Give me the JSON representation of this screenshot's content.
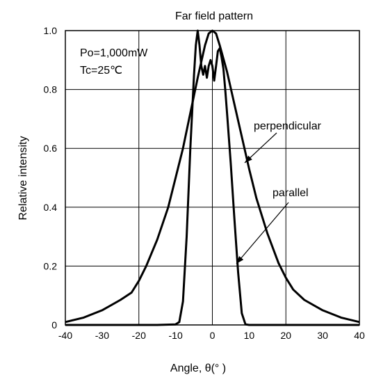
{
  "chart_data": {
    "type": "line",
    "title": "Far field pattern",
    "xlabel": "Angle,  θ(°  )",
    "ylabel": "Relative intensity",
    "xlim": [
      -40,
      40
    ],
    "ylim": [
      0,
      1.0
    ],
    "x_ticks": [
      "-40",
      "-30",
      "-20",
      "-10",
      "0",
      "10",
      "20",
      "30",
      "40"
    ],
    "y_ticks": [
      "0",
      "0.2",
      "0.4",
      "0.6",
      "0.8",
      "1.0"
    ],
    "grid": true,
    "annotations": {
      "power": "Po=1,000mW",
      "temp": "Tc=25℃",
      "perpendicular_label": "perpendicular",
      "parallel_label": "parallel"
    },
    "series": [
      {
        "name": "perpendicular",
        "x": [
          -40,
          -35,
          -30,
          -25,
          -22,
          -20,
          -18,
          -15,
          -12,
          -10,
          -8,
          -6,
          -4,
          -2,
          -1,
          0,
          1,
          2,
          4,
          6,
          8,
          10,
          12,
          15,
          18,
          20,
          22,
          25,
          30,
          35,
          40
        ],
        "y": [
          0.01,
          0.025,
          0.05,
          0.085,
          0.11,
          0.15,
          0.2,
          0.29,
          0.4,
          0.5,
          0.6,
          0.72,
          0.84,
          0.95,
          0.99,
          1.0,
          0.99,
          0.95,
          0.86,
          0.75,
          0.64,
          0.53,
          0.43,
          0.31,
          0.21,
          0.16,
          0.12,
          0.085,
          0.05,
          0.025,
          0.01
        ]
      },
      {
        "name": "parallel",
        "x": [
          -40,
          -15,
          -10,
          -9,
          -8,
          -7,
          -6,
          -5,
          -4.5,
          -4,
          -3.5,
          -3,
          -2.5,
          -2,
          -1.5,
          -1,
          -0.5,
          0,
          0.5,
          1,
          1.5,
          2,
          2.5,
          3,
          3.5,
          4,
          5,
          6,
          7,
          8,
          9,
          10,
          20,
          40
        ],
        "y": [
          0,
          0,
          0.002,
          0.01,
          0.08,
          0.3,
          0.6,
          0.85,
          0.95,
          1.0,
          0.95,
          0.88,
          0.85,
          0.88,
          0.84,
          0.88,
          0.9,
          0.88,
          0.83,
          0.88,
          0.93,
          0.94,
          0.91,
          0.87,
          0.8,
          0.72,
          0.55,
          0.36,
          0.18,
          0.04,
          0.002,
          0,
          0,
          0
        ]
      }
    ]
  }
}
